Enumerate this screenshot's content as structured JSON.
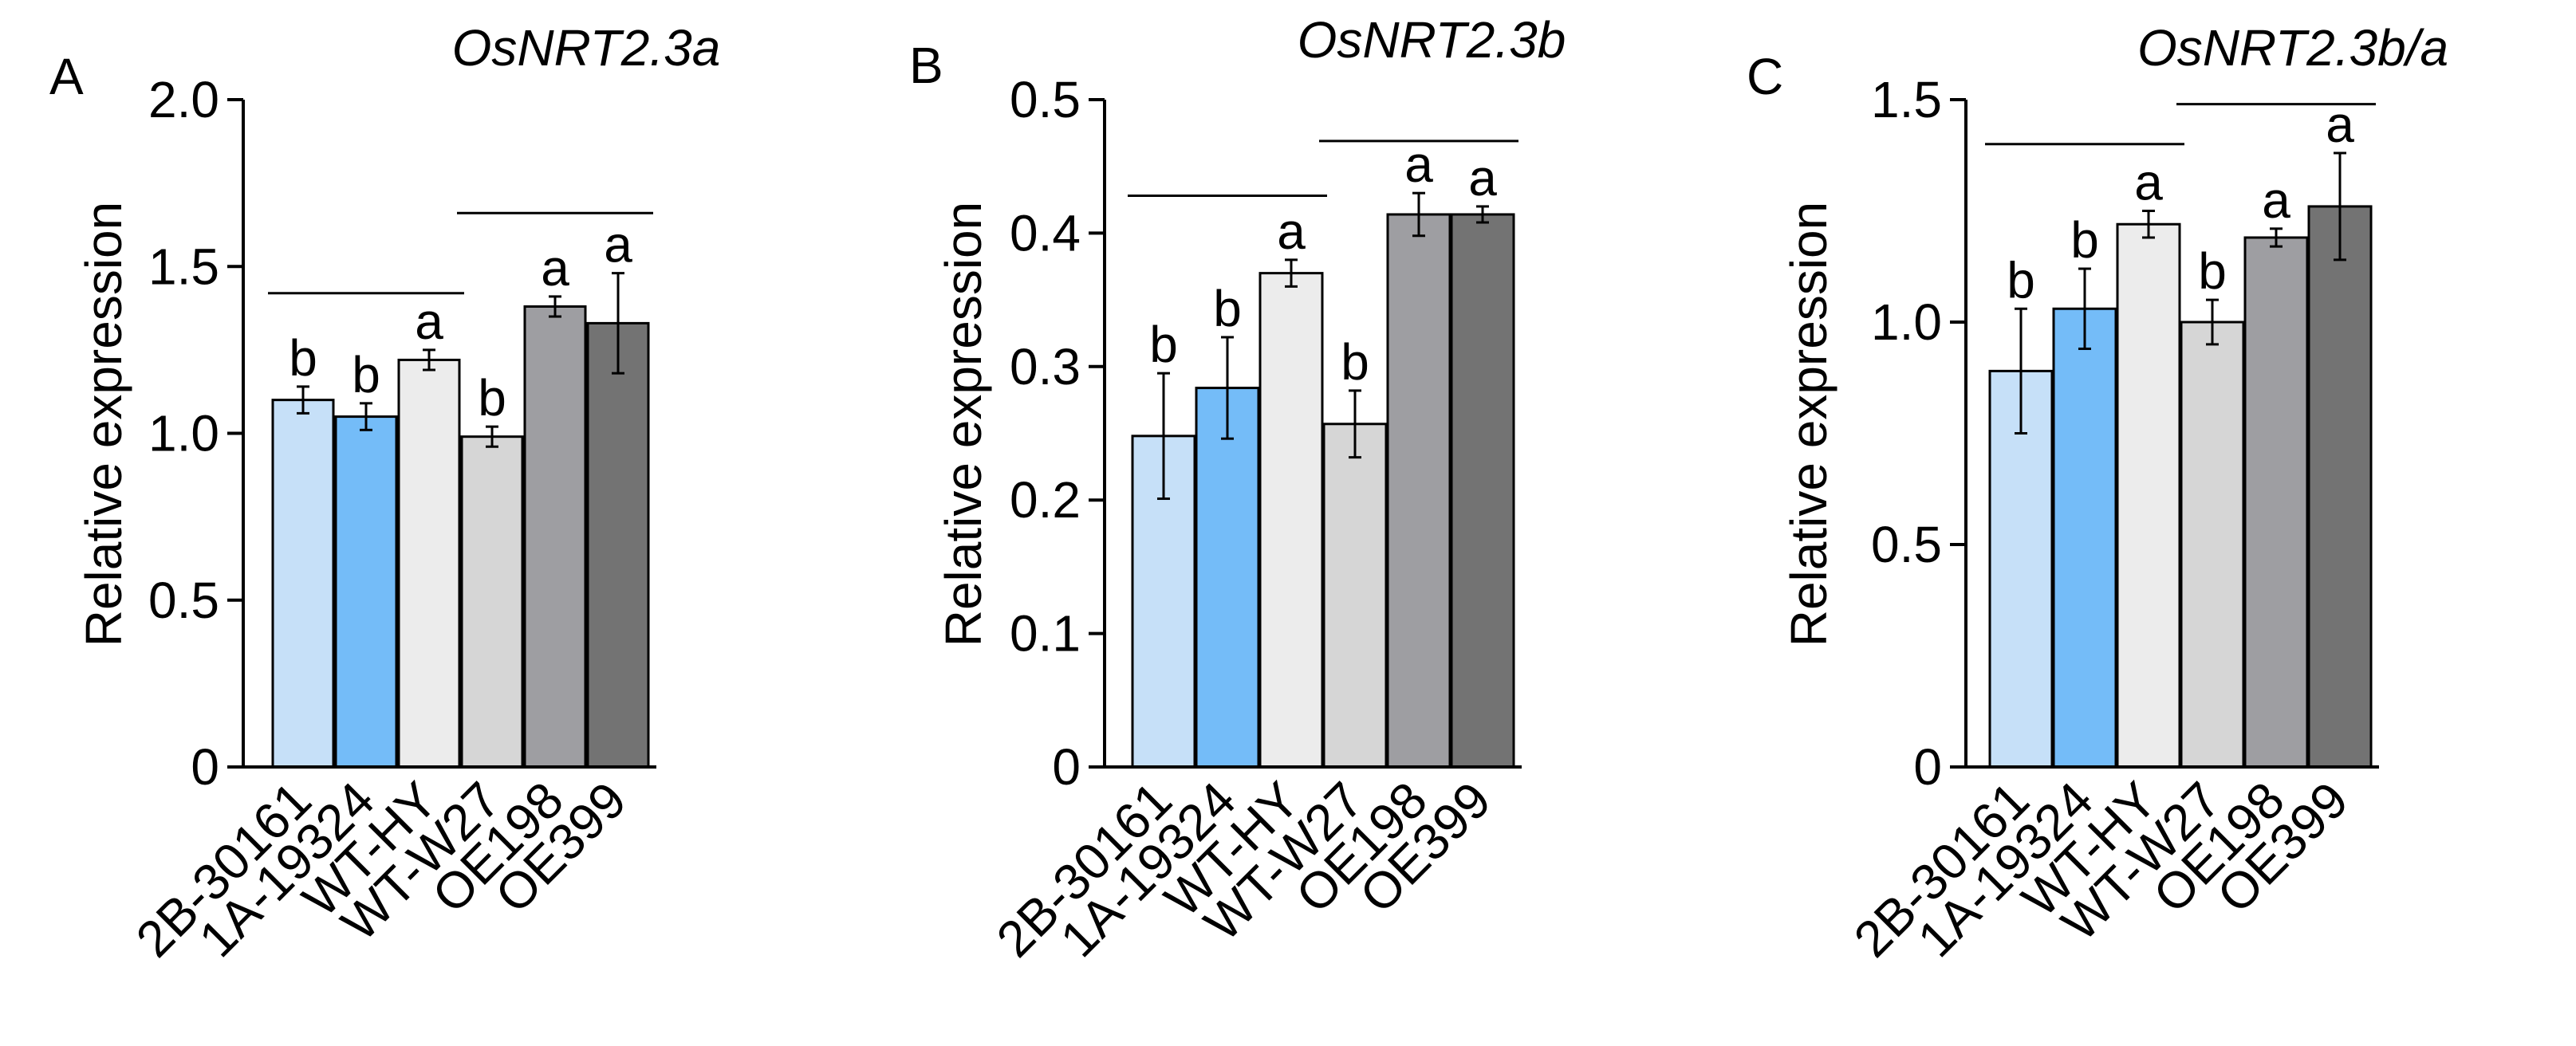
{
  "chart_data": [
    {
      "type": "bar",
      "panel_label": "A",
      "title": "OsNRT2.3a",
      "xlabel": "",
      "ylabel": "Relative expression",
      "categories": [
        "2B-30161",
        "1A-19324",
        "WT-HY",
        "WT-W27",
        "OE198",
        "OE399"
      ],
      "values": [
        1.1,
        1.05,
        1.22,
        0.99,
        1.38,
        1.33
      ],
      "errors": [
        0.04,
        0.04,
        0.03,
        0.03,
        0.03,
        0.15
      ],
      "significance": [
        "b",
        "b",
        "a",
        "b",
        "a",
        "a"
      ],
      "ylim": [
        0,
        2.0
      ],
      "yticks": [
        0,
        0.5,
        1.0,
        1.5,
        2.0
      ],
      "ytick_labels": [
        "0",
        "0.5",
        "1.0",
        "1.5",
        "2.0"
      ],
      "group_lines": [
        {
          "from": 0,
          "to": 2,
          "y": 1.42
        },
        {
          "from": 3,
          "to": 5,
          "y": 1.66
        }
      ],
      "grid": false
    },
    {
      "type": "bar",
      "panel_label": "B",
      "title": "OsNRT2.3b",
      "xlabel": "",
      "ylabel": "Relative expression",
      "categories": [
        "2B-30161",
        "1A-19324",
        "WT-HY",
        "WT-W27",
        "OE198",
        "OE399"
      ],
      "values": [
        0.248,
        0.284,
        0.37,
        0.257,
        0.414,
        0.414
      ],
      "errors": [
        0.047,
        0.038,
        0.01,
        0.025,
        0.016,
        0.006
      ],
      "significance": [
        "b",
        "b",
        "a",
        "b",
        "a",
        "a"
      ],
      "ylim": [
        0,
        0.5
      ],
      "yticks": [
        0,
        0.1,
        0.2,
        0.3,
        0.4,
        0.5
      ],
      "ytick_labels": [
        "0",
        "0.1",
        "0.2",
        "0.3",
        "0.4",
        "0.5"
      ],
      "group_lines": [
        {
          "from": 0,
          "to": 2,
          "y": 0.428
        },
        {
          "from": 3,
          "to": 5,
          "y": 0.469
        }
      ],
      "grid": false
    },
    {
      "type": "bar",
      "panel_label": "C",
      "title": "OsNRT2.3b/a",
      "xlabel": "",
      "ylabel": "Relative expression",
      "categories": [
        "2B-30161",
        "1A-19324",
        "WT-HY",
        "WT-W27",
        "OE198",
        "OE399"
      ],
      "values": [
        0.89,
        1.03,
        1.22,
        1.0,
        1.19,
        1.26
      ],
      "errors": [
        0.14,
        0.09,
        0.03,
        0.05,
        0.02,
        0.12
      ],
      "significance": [
        "b",
        "b",
        "a",
        "b",
        "a",
        "a"
      ],
      "ylim": [
        0,
        1.5
      ],
      "yticks": [
        0,
        0.5,
        1.0,
        1.5
      ],
      "ytick_labels": [
        "0",
        "0.5",
        "1.0",
        "1.5"
      ],
      "group_lines": [
        {
          "from": 0,
          "to": 2,
          "y": 1.4
        },
        {
          "from": 3,
          "to": 5,
          "y": 1.49
        }
      ],
      "grid": false
    }
  ],
  "bar_colors": [
    "#c6e0f8",
    "#74bcf8",
    "#ececec",
    "#d6d6d6",
    "#9e9ea2",
    "#737373"
  ],
  "line_color": "#000000"
}
